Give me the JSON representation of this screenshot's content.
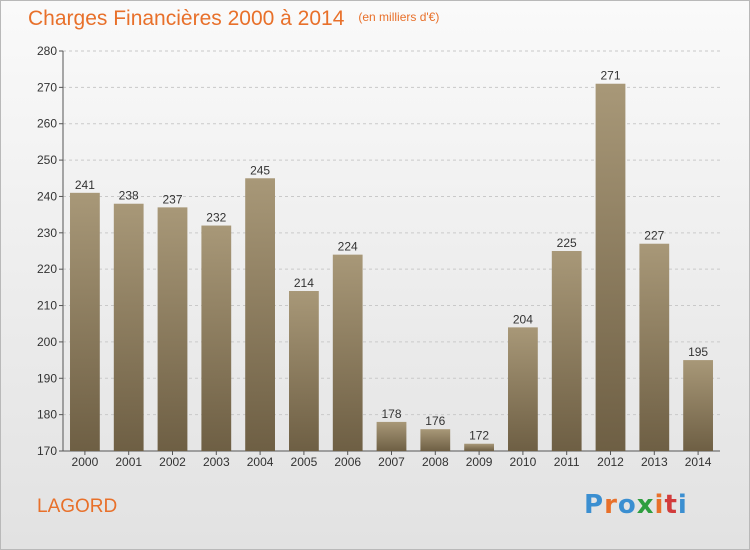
{
  "header": {
    "title": "Charges Financières 2000 à 2014",
    "unit": "(en milliers d'€)"
  },
  "footer": {
    "commune": "LAGORD",
    "logo_text": "Proxiti"
  },
  "colors": {
    "title": "#e8702a",
    "bar_top": "#a89878",
    "bar_bottom": "#6e5f44",
    "grid": "#c9c9c9",
    "logo_letters": [
      "#3b8fd1",
      "#e8702a",
      "#3b8fd1",
      "#2e9e3f",
      "#e8702a",
      "#d23b3b",
      "#3b8fd1"
    ]
  },
  "chart_data": {
    "type": "bar",
    "title": "Charges Financières 2000 à 2014",
    "subtitle": "(en milliers d'€)",
    "categories": [
      "2000",
      "2001",
      "2002",
      "2003",
      "2004",
      "2005",
      "2006",
      "2007",
      "2008",
      "2009",
      "2010",
      "2011",
      "2012",
      "2013",
      "2014"
    ],
    "values": [
      241,
      238,
      237,
      232,
      245,
      214,
      224,
      178,
      176,
      172,
      204,
      225,
      271,
      227,
      195
    ],
    "ylim": [
      170,
      280
    ],
    "yticks": [
      170,
      180,
      190,
      200,
      210,
      220,
      230,
      240,
      250,
      260,
      270,
      280
    ],
    "grid": true,
    "data_labels": true
  }
}
